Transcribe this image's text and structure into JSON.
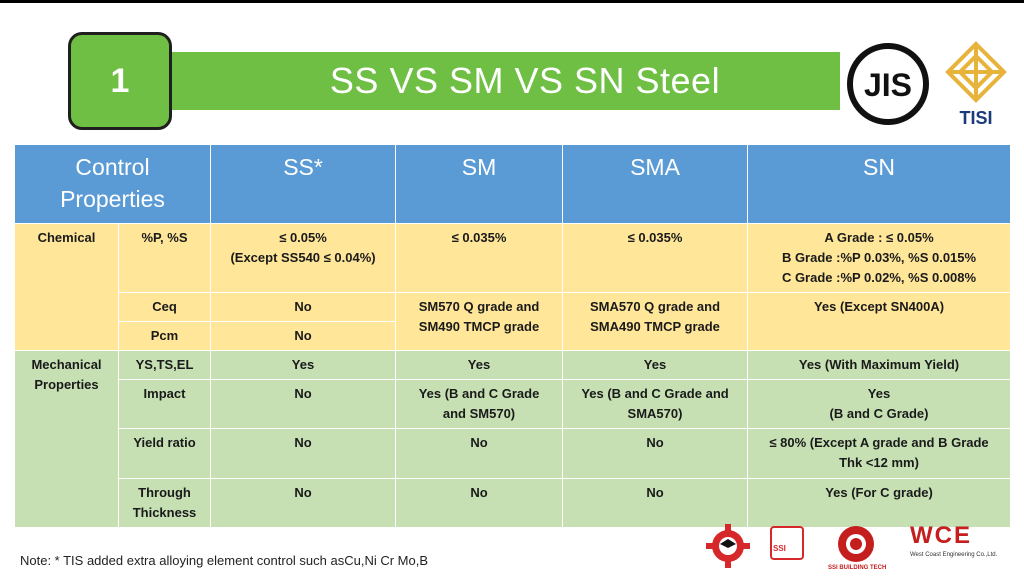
{
  "slide": {
    "number": "1",
    "title": "SS VS SM VS SN Steel"
  },
  "logos": {
    "jis": "JIS",
    "tisi": "TISI"
  },
  "table": {
    "headers": [
      "Control Properties",
      "SS*",
      "SM",
      "SMA",
      "SN"
    ],
    "chemical": {
      "category": "Chemical",
      "p_s": {
        "label": "%P, %S",
        "ss_line1": "≤ 0.05%",
        "ss_line2": "(Except SS540 ≤ 0.04%)",
        "sm": "≤  0.035%",
        "sma": "≤  0.035%",
        "sn_line1": "A Grade : ≤ 0.05%",
        "sn_line2": "B Grade :%P 0.03%, %S 0.015%",
        "sn_line3": "C Grade :%P 0.02%, %S 0.008%"
      },
      "ceq": {
        "label": "Ceq",
        "ss": "No"
      },
      "pcm": {
        "label": "Pcm",
        "ss": "No"
      },
      "ceq_pcm": {
        "sm_line1": "SM570 Q grade and",
        "sm_line2": "SM490 TMCP grade",
        "sma_line1": "SMA570 Q grade and",
        "sma_line2": "SMA490 TMCP grade",
        "sn": "Yes (Except SN400A)"
      }
    },
    "mechanical": {
      "category_line1": "Mechanical",
      "category_line2": "Properties",
      "ys": {
        "label": "YS,TS,EL",
        "ss": "Yes",
        "sm": "Yes",
        "sma": "Yes",
        "sn": "Yes (With Maximum  Yield)"
      },
      "impact": {
        "label": "Impact",
        "ss": "No",
        "sm_line1": "Yes (B and C Grade",
        "sm_line2": "and SM570)",
        "sma_line1": "Yes (B and C Grade and",
        "sma_line2": "SMA570)",
        "sn_line1": "Yes",
        "sn_line2": "(B and C Grade)"
      },
      "yield_ratio": {
        "label": "Yield ratio",
        "ss": "No",
        "sm": "No",
        "sma": "No",
        "sn_line1": "≤ 80% (Except A grade and B Grade",
        "sn_line2": "Thk <12 mm)"
      },
      "through": {
        "label_line1": "Through",
        "label_line2": "Thickness",
        "ss": "No",
        "sm": "No",
        "sma": "No",
        "sn": "Yes (For C grade)"
      }
    }
  },
  "note": "Note: * TIS   added extra alloying element control such asCu,Ni Cr Mo,B",
  "footer_logos": {
    "ssi": "SSI",
    "ssi_building": "SSI BUILDING TECH",
    "wce": "WCE",
    "wce_label": "West Coast Engineering Co.,Ltd."
  },
  "colors": {
    "title_green": "#6fbf44",
    "header_blue": "#5b9bd5",
    "chemical_yellow": "#ffe699",
    "mechanical_green": "#c6e0b4"
  }
}
